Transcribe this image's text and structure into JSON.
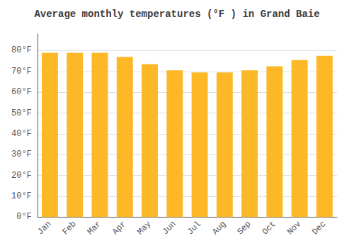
{
  "chart_data": {
    "type": "bar",
    "title": "Average monthly temperatures (°F ) in Grand Baie",
    "categories": [
      "Jan",
      "Feb",
      "Mar",
      "Apr",
      "May",
      "Jun",
      "Jul",
      "Aug",
      "Sep",
      "Oct",
      "Nov",
      "Dec"
    ],
    "values": [
      79,
      79,
      79,
      77,
      73.5,
      70.5,
      69.5,
      69.5,
      70.5,
      72.5,
      75.5,
      77.5
    ],
    "color": "#FDB827",
    "ylim": [
      0,
      88
    ],
    "yticks": [
      {
        "value": 0,
        "label": "0°F"
      },
      {
        "value": 10,
        "label": "10°F"
      },
      {
        "value": 20,
        "label": "20°F"
      },
      {
        "value": 30,
        "label": "30°F"
      },
      {
        "value": 40,
        "label": "40°F"
      },
      {
        "value": 50,
        "label": "50°F"
      },
      {
        "value": 60,
        "label": "60°F"
      },
      {
        "value": 70,
        "label": "70°F"
      },
      {
        "value": 80,
        "label": "80°F"
      }
    ],
    "grid": true
  }
}
